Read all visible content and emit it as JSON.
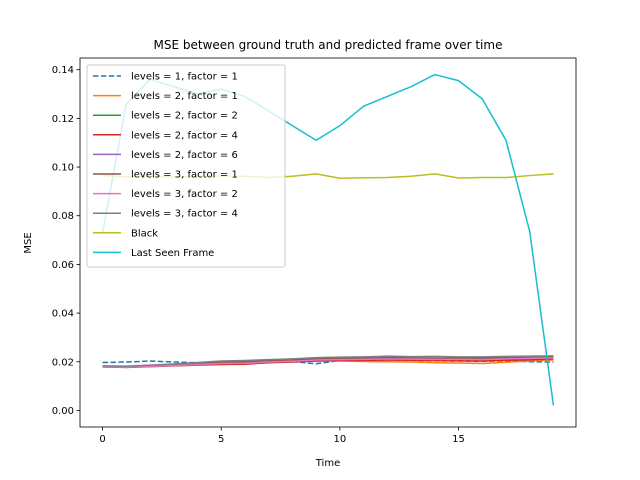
{
  "chart_data": {
    "type": "line",
    "title": "MSE between ground truth and predicted frame over time",
    "xlabel": "Time",
    "ylabel": "MSE",
    "xlim": [
      -0.95,
      19.95
    ],
    "ylim": [
      -0.0068,
      0.1448
    ],
    "x_ticks": [
      0,
      5,
      10,
      15
    ],
    "y_ticks": [
      0.0,
      0.02,
      0.04,
      0.06,
      0.08,
      0.1,
      0.12,
      0.14
    ],
    "y_tick_labels": [
      "0.00",
      "0.02",
      "0.04",
      "0.06",
      "0.08",
      "0.10",
      "0.12",
      "0.14"
    ],
    "grid": false,
    "legend_position": "upper left",
    "x": [
      0,
      1,
      2,
      3,
      4,
      5,
      6,
      7,
      8,
      9,
      10,
      11,
      12,
      13,
      14,
      15,
      16,
      17,
      18,
      19
    ],
    "series": [
      {
        "name": "levels = 1, factor = 1",
        "color": "#1f77b4",
        "dashed": true,
        "values": [
          0.0197,
          0.0199,
          0.0203,
          0.0199,
          0.0196,
          0.0198,
          0.0197,
          0.0199,
          0.0201,
          0.0192,
          0.0205,
          0.0207,
          0.0208,
          0.0206,
          0.0204,
          0.0203,
          0.0202,
          0.0204,
          0.02,
          0.0199
        ]
      },
      {
        "name": "levels = 2, factor = 1",
        "color": "#ff7f0e",
        "dashed": false,
        "values": [
          0.0178,
          0.0177,
          0.018,
          0.0184,
          0.0188,
          0.019,
          0.0192,
          0.0197,
          0.02,
          0.0203,
          0.0203,
          0.0201,
          0.02,
          0.0199,
          0.0196,
          0.0195,
          0.0193,
          0.0198,
          0.0203,
          0.0207
        ]
      },
      {
        "name": "levels = 2, factor = 2",
        "color": "#2ca02c",
        "dashed": false,
        "values": [
          0.018,
          0.0179,
          0.0182,
          0.0186,
          0.019,
          0.0193,
          0.0196,
          0.02,
          0.0203,
          0.0206,
          0.0208,
          0.0209,
          0.021,
          0.0209,
          0.0208,
          0.0207,
          0.0207,
          0.021,
          0.0212,
          0.0214
        ]
      },
      {
        "name": "levels = 2, factor = 4",
        "color": "#d62728",
        "dashed": false,
        "values": [
          0.0179,
          0.0177,
          0.018,
          0.0183,
          0.0186,
          0.0189,
          0.019,
          0.0196,
          0.0199,
          0.0203,
          0.0205,
          0.0205,
          0.0207,
          0.0206,
          0.0205,
          0.0204,
          0.0203,
          0.0206,
          0.0208,
          0.0212
        ]
      },
      {
        "name": "levels = 2, factor = 6",
        "color": "#9467bd",
        "dashed": false,
        "values": [
          0.0182,
          0.018,
          0.0183,
          0.0187,
          0.0192,
          0.0196,
          0.0198,
          0.0202,
          0.0205,
          0.021,
          0.0212,
          0.0213,
          0.0216,
          0.0214,
          0.0212,
          0.0213,
          0.0212,
          0.0214,
          0.0216,
          0.0218
        ]
      },
      {
        "name": "levels = 3, factor = 1",
        "color": "#8c564b",
        "dashed": false,
        "values": [
          0.0181,
          0.018,
          0.0183,
          0.0188,
          0.0193,
          0.0198,
          0.02,
          0.0204,
          0.0207,
          0.0212,
          0.0214,
          0.0215,
          0.0217,
          0.0216,
          0.0215,
          0.0215,
          0.0215,
          0.0217,
          0.0218,
          0.022
        ]
      },
      {
        "name": "levels = 3, factor = 2",
        "color": "#e377c2",
        "dashed": false,
        "values": [
          0.0179,
          0.0178,
          0.0181,
          0.0184,
          0.0189,
          0.0193,
          0.0194,
          0.0199,
          0.0202,
          0.0207,
          0.0209,
          0.021,
          0.0212,
          0.0211,
          0.021,
          0.021,
          0.0209,
          0.0212,
          0.0214,
          0.0216
        ]
      },
      {
        "name": "levels = 3, factor = 4",
        "color": "#7f7f7f",
        "dashed": false,
        "values": [
          0.0183,
          0.0182,
          0.0186,
          0.0191,
          0.0197,
          0.0203,
          0.0205,
          0.0209,
          0.0212,
          0.0217,
          0.0219,
          0.022,
          0.0223,
          0.0221,
          0.0222,
          0.022,
          0.022,
          0.0222,
          0.0223,
          0.0224
        ]
      },
      {
        "name": "Black",
        "color": "#bcbd22",
        "dashed": false,
        "values": [
          0.0965,
          0.096,
          0.0962,
          0.0958,
          0.0962,
          0.0963,
          0.0962,
          0.0957,
          0.0962,
          0.0972,
          0.0954,
          0.0956,
          0.0957,
          0.0962,
          0.0972,
          0.0955,
          0.0957,
          0.0957,
          0.0965,
          0.0972
        ]
      },
      {
        "name": "Last Seen Frame",
        "color": "#17becf",
        "dashed": false,
        "values": [
          0.073,
          0.126,
          0.136,
          0.133,
          0.13,
          0.132,
          0.129,
          0.123,
          0.117,
          0.111,
          0.117,
          0.125,
          0.129,
          0.133,
          0.138,
          0.1355,
          0.128,
          0.111,
          0.0735,
          0.002
        ]
      }
    ]
  }
}
